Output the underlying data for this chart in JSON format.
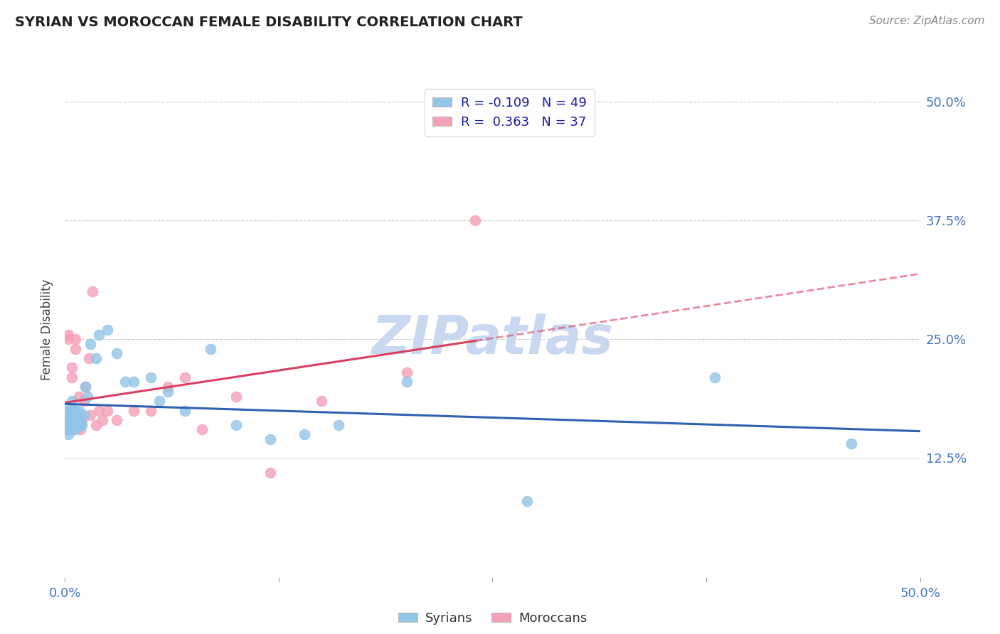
{
  "title": "SYRIAN VS MOROCCAN FEMALE DISABILITY CORRELATION CHART",
  "source": "Source: ZipAtlas.com",
  "ylabel": "Female Disability",
  "xlim": [
    0.0,
    0.5
  ],
  "ylim": [
    0.0,
    0.52
  ],
  "x_tick_positions": [
    0.0,
    0.125,
    0.25,
    0.375,
    0.5
  ],
  "x_tick_labels": [
    "0.0%",
    "",
    "",
    "",
    "50.0%"
  ],
  "y_tick_positions": [
    0.125,
    0.25,
    0.375,
    0.5
  ],
  "y_tick_labels": [
    "12.5%",
    "25.0%",
    "37.5%",
    "50.0%"
  ],
  "syrian_R": -0.109,
  "syrian_N": 49,
  "moroccan_R": 0.363,
  "moroccan_N": 37,
  "syrian_color": "#92C5E8",
  "moroccan_color": "#F4A0B8",
  "syrian_line_color": "#3060B0",
  "moroccan_line_color": "#D94060",
  "axis_color": "#4472C4",
  "grid_color": "#CCCCCC",
  "watermark": "ZIPatlas",
  "watermark_color": "#C8D8F0",
  "syrians_label": "Syrians",
  "moroccans_label": "Moroccans",
  "syrian_x": [
    0.001,
    0.001,
    0.001,
    0.002,
    0.002,
    0.002,
    0.003,
    0.003,
    0.003,
    0.003,
    0.004,
    0.004,
    0.004,
    0.005,
    0.005,
    0.005,
    0.006,
    0.006,
    0.006,
    0.007,
    0.007,
    0.008,
    0.008,
    0.009,
    0.009,
    0.01,
    0.011,
    0.012,
    0.013,
    0.015,
    0.018,
    0.02,
    0.025,
    0.03,
    0.035,
    0.04,
    0.05,
    0.06,
    0.07,
    0.085,
    0.1,
    0.12,
    0.14,
    0.16,
    0.2,
    0.055,
    0.27,
    0.38,
    0.46
  ],
  "syrian_y": [
    0.155,
    0.16,
    0.17,
    0.15,
    0.165,
    0.175,
    0.155,
    0.165,
    0.175,
    0.18,
    0.16,
    0.175,
    0.185,
    0.155,
    0.165,
    0.175,
    0.155,
    0.165,
    0.175,
    0.16,
    0.17,
    0.165,
    0.175,
    0.16,
    0.17,
    0.16,
    0.17,
    0.2,
    0.19,
    0.245,
    0.23,
    0.255,
    0.26,
    0.235,
    0.205,
    0.205,
    0.21,
    0.195,
    0.175,
    0.24,
    0.16,
    0.145,
    0.15,
    0.16,
    0.205,
    0.185,
    0.08,
    0.21,
    0.14
  ],
  "moroccan_x": [
    0.001,
    0.001,
    0.002,
    0.002,
    0.003,
    0.003,
    0.004,
    0.004,
    0.005,
    0.005,
    0.006,
    0.006,
    0.007,
    0.007,
    0.008,
    0.009,
    0.01,
    0.011,
    0.012,
    0.014,
    0.015,
    0.016,
    0.018,
    0.02,
    0.022,
    0.025,
    0.03,
    0.04,
    0.05,
    0.06,
    0.07,
    0.08,
    0.1,
    0.12,
    0.15,
    0.2,
    0.24
  ],
  "moroccan_y": [
    0.155,
    0.165,
    0.25,
    0.255,
    0.16,
    0.155,
    0.21,
    0.22,
    0.175,
    0.165,
    0.24,
    0.25,
    0.16,
    0.17,
    0.19,
    0.155,
    0.165,
    0.185,
    0.2,
    0.23,
    0.17,
    0.3,
    0.16,
    0.175,
    0.165,
    0.175,
    0.165,
    0.175,
    0.175,
    0.2,
    0.21,
    0.155,
    0.19,
    0.11,
    0.185,
    0.215,
    0.375
  ]
}
